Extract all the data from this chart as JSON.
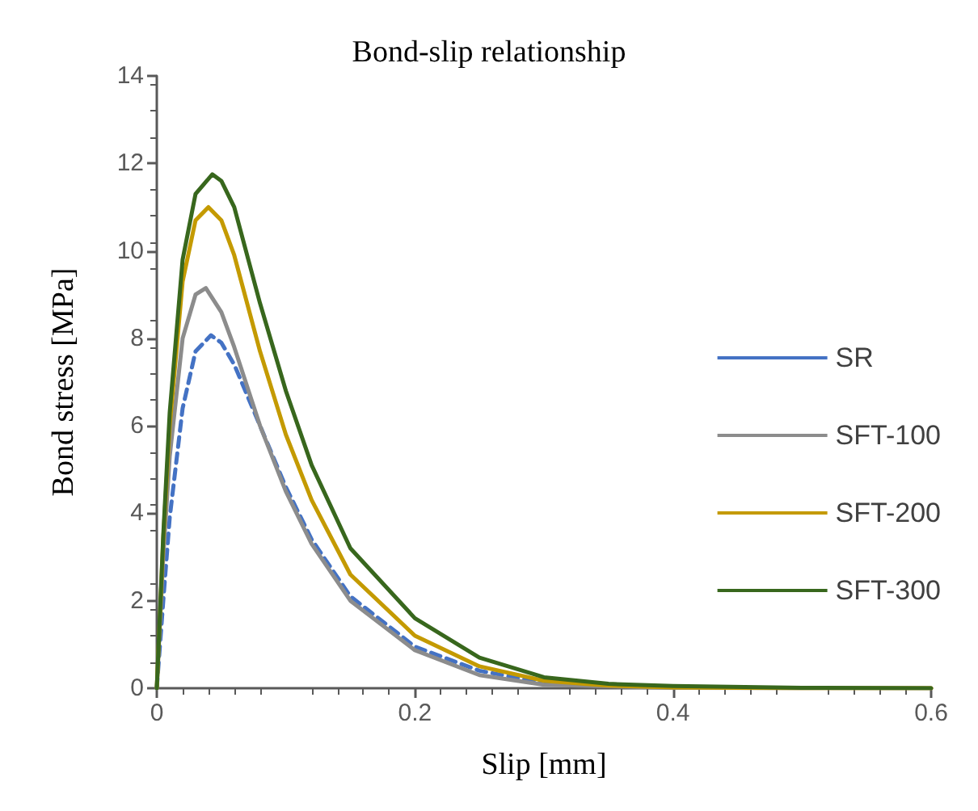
{
  "chart_data": {
    "type": "line",
    "title": "Bond-slip relationship",
    "xlabel": "Slip [mm]",
    "ylabel": "Bond stress [MPa]",
    "xlim": [
      0,
      0.6
    ],
    "xticks": [
      0,
      0.2,
      0.4,
      0.6
    ],
    "ylim": [
      0,
      14
    ],
    "yticks": [
      0,
      2,
      4,
      6,
      8,
      10,
      12,
      14
    ],
    "grid": false,
    "legend": "right",
    "marker": "none",
    "series": [
      {
        "name": "SR",
        "color": "#4472c4",
        "line_style": "dashed",
        "x": [
          0,
          0.005,
          0.01,
          0.02,
          0.03,
          0.042,
          0.05,
          0.06,
          0.08,
          0.1,
          0.12,
          0.15,
          0.2,
          0.25,
          0.3,
          0.4
        ],
        "values": [
          0,
          2.0,
          3.9,
          6.4,
          7.7,
          8.07,
          7.9,
          7.4,
          6.0,
          4.6,
          3.4,
          2.1,
          0.95,
          0.4,
          0.12,
          0.02
        ]
      },
      {
        "name": "SFT-100",
        "color": "#8c8c8c",
        "line_style": "solid",
        "x": [
          0,
          0.005,
          0.01,
          0.02,
          0.03,
          0.038,
          0.05,
          0.06,
          0.08,
          0.1,
          0.12,
          0.15,
          0.2,
          0.25,
          0.3,
          0.4,
          0.5,
          0.6
        ],
        "values": [
          0,
          3.0,
          5.3,
          8.0,
          9.0,
          9.15,
          8.6,
          7.8,
          6.0,
          4.5,
          3.3,
          2.0,
          0.87,
          0.3,
          0.08,
          0.01,
          0,
          0
        ]
      },
      {
        "name": "SFT-200",
        "color": "#c49a00",
        "line_style": "solid",
        "x": [
          0,
          0.005,
          0.01,
          0.02,
          0.03,
          0.04,
          0.05,
          0.06,
          0.08,
          0.1,
          0.12,
          0.15,
          0.2,
          0.25,
          0.3,
          0.35,
          0.4,
          0.5,
          0.6
        ],
        "values": [
          0,
          3.4,
          6.0,
          9.3,
          10.7,
          11.0,
          10.7,
          9.9,
          7.7,
          5.8,
          4.3,
          2.6,
          1.2,
          0.5,
          0.17,
          0.06,
          0.02,
          0,
          0
        ]
      },
      {
        "name": "SFT-300",
        "color": "#38671d",
        "line_style": "solid",
        "x": [
          0,
          0.005,
          0.01,
          0.02,
          0.03,
          0.043,
          0.05,
          0.06,
          0.08,
          0.1,
          0.12,
          0.15,
          0.2,
          0.25,
          0.3,
          0.35,
          0.4,
          0.5,
          0.6
        ],
        "values": [
          0,
          3.5,
          6.3,
          9.8,
          11.3,
          11.75,
          11.6,
          11.0,
          8.8,
          6.8,
          5.1,
          3.2,
          1.6,
          0.7,
          0.25,
          0.1,
          0.05,
          0.01,
          0
        ]
      }
    ]
  }
}
